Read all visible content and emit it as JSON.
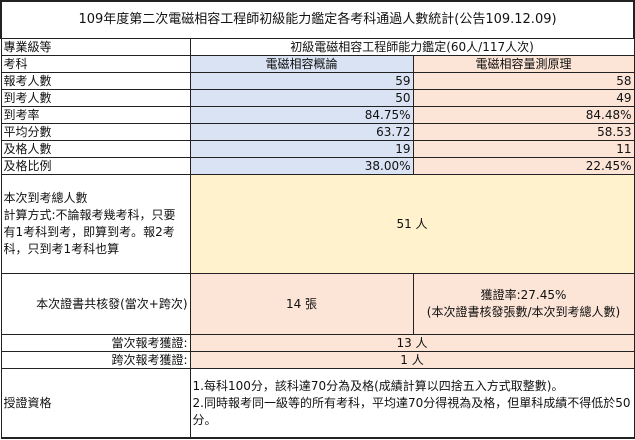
{
  "title": "109年度第二次電磁相容工程師初級能力鑑定各考科通過人數統計(公告109.12.09)",
  "level_label": "專業級等",
  "level_value": "初級電磁相容工程師能力鑑定(60人/117人次)",
  "subject_label": "考科",
  "subjects": [
    "電磁相容概論",
    "電磁相容量測原理"
  ],
  "rows": [
    {
      "label": "報考人數",
      "values": [
        "59",
        "58"
      ]
    },
    {
      "label": "到考人數",
      "values": [
        "50",
        "49"
      ]
    },
    {
      "label": "到考率",
      "values": [
        "84.75%",
        "84.48%"
      ]
    },
    {
      "label": "平均分數",
      "values": [
        "63.72",
        "58.53"
      ]
    },
    {
      "label": "及格人數",
      "values": [
        "19",
        "11"
      ]
    },
    {
      "label": "及格比例",
      "values": [
        "38.00%",
        "22.45%"
      ]
    }
  ],
  "total_attend": {
    "label": "本次到考總人數\n計算方式:不論報考幾考科，只要有1考科到考，即算到考。報2考科，只到考1考科也算",
    "value": "51 人"
  },
  "certs": {
    "label": "本次證書共核發(當次+跨次)",
    "value": "14 張",
    "rate": "獲證率:27.45%\n(本次證書核發張數/本次到考總人數)"
  },
  "current": {
    "label": "當次報考獲證:",
    "value": "13 人"
  },
  "cross": {
    "label": "跨次報考獲證:",
    "value": "1 人"
  },
  "qualification": {
    "label": "授證資格",
    "text": "1.每科100分，該科達70分為及格(成績計算以四捨五入方式取整數)。\n2.同時報考同一級等的所有考科，平均達70分得視為及格，但單科成績不得低於50分。"
  },
  "colors": {
    "subject1": "#dae3f3",
    "subject2": "#fce4d6",
    "total": "#fff2cc"
  }
}
